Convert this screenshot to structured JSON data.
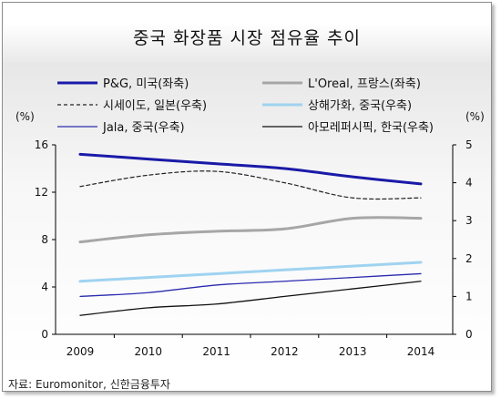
{
  "chart_data": {
    "type": "line",
    "title": "중국 화장품 시장 점유율 추이",
    "x": [
      "2009",
      "2010",
      "2011",
      "2012",
      "2013",
      "2014"
    ],
    "y_left": {
      "label": "(%)",
      "ticks": [
        "0",
        "4",
        "8",
        "12",
        "16"
      ],
      "range": [
        0,
        16
      ]
    },
    "y_right": {
      "label": "(%)",
      "ticks": [
        "0",
        "1",
        "2",
        "3",
        "4",
        "5"
      ],
      "range": [
        0,
        5
      ]
    },
    "grid": false,
    "legend_placement": "top",
    "series": [
      {
        "name": "P&G, 미국(좌축)",
        "axis": "left",
        "color": "#1a1aa8",
        "style": "solid-thick",
        "values": [
          15.2,
          14.8,
          14.4,
          14.0,
          13.3,
          12.7
        ]
      },
      {
        "name": "L'Oreal, 프랑스(좌축)",
        "axis": "left",
        "color": "#a6a6a6",
        "style": "solid-thick",
        "values": [
          7.8,
          8.4,
          8.7,
          8.9,
          9.8,
          9.8
        ]
      },
      {
        "name": "시세이도, 일본(우축)",
        "axis": "right",
        "color": "#222222",
        "style": "dashed",
        "values": [
          3.9,
          4.2,
          4.3,
          4.0,
          3.6,
          3.6
        ]
      },
      {
        "name": "상해가화, 중국(우축)",
        "axis": "right",
        "color": "#9fd3f0",
        "style": "solid-thick",
        "values": [
          1.4,
          1.5,
          1.6,
          1.7,
          1.8,
          1.9
        ]
      },
      {
        "name": "Jala, 중국(우축)",
        "axis": "right",
        "color": "#2b2bb0",
        "style": "solid",
        "values": [
          1.0,
          1.1,
          1.3,
          1.4,
          1.5,
          1.6
        ]
      },
      {
        "name": "아모레퍼시픽, 한국(우축)",
        "axis": "right",
        "color": "#111111",
        "style": "solid",
        "values": [
          0.5,
          0.7,
          0.8,
          1.0,
          1.2,
          1.4
        ]
      }
    ]
  },
  "source": "자료: Euromonitor, 신한금융투자"
}
